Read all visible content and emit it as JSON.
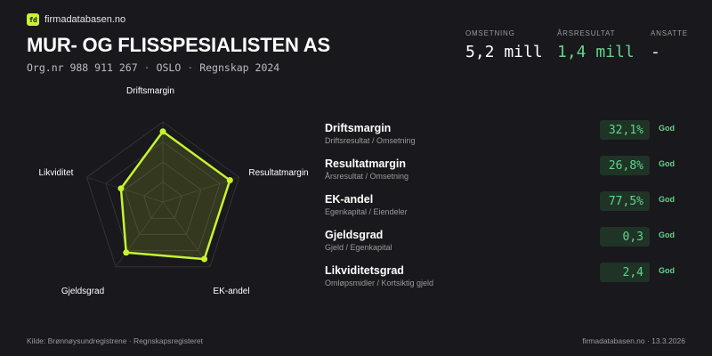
{
  "brand": {
    "logo_text": "fd",
    "name": "firmadatabasen.no",
    "accent": "#c6f432"
  },
  "company": {
    "name": "MUR- OG FLISSPESIALISTEN AS",
    "orgnr": "Org.nr 988 911 267",
    "city": "OSLO",
    "accounts": "Regnskap 2024",
    "separator": "·"
  },
  "stats": [
    {
      "label": "OMSETNING",
      "value": "5,2 mill",
      "color": "#ffffff"
    },
    {
      "label": "ÅRSRESULTAT",
      "value": "1,4 mill",
      "color": "#63d48a"
    },
    {
      "label": "ANSATTE",
      "value": "-",
      "color": "#ffffff"
    }
  ],
  "chart_data": {
    "type": "radar",
    "axes": [
      "Driftsmargin",
      "Resultatmargin",
      "EK-andel",
      "Gjeldsgrad",
      "Likviditet"
    ],
    "values": [
      0.88,
      0.88,
      0.88,
      0.78,
      0.55
    ],
    "rings": 4,
    "fill_color": "#c6f432",
    "grid": true
  },
  "metrics": [
    {
      "title": "Driftsmargin",
      "subtitle": "Driftsresultat / Omsetning",
      "value": "32,1%",
      "rating": "God"
    },
    {
      "title": "Resultatmargin",
      "subtitle": "Årsresultat / Omsetning",
      "value": "26,8%",
      "rating": "God"
    },
    {
      "title": "EK-andel",
      "subtitle": "Egenkapital / Eiendeler",
      "value": "77,5%",
      "rating": "God"
    },
    {
      "title": "Gjeldsgrad",
      "subtitle": "Gjeld / Egenkapital",
      "value": "0,3",
      "rating": "God"
    },
    {
      "title": "Likviditetsgrad",
      "subtitle": "Omløpsmidler / Kortsiktig gjeld",
      "value": "2,4",
      "rating": "God"
    }
  ],
  "footer": {
    "source": "Kilde: Brønnøysundregistrene · Regnskapsregisteret",
    "site_date": "firmadatabasen.no · 13.3.2026"
  }
}
